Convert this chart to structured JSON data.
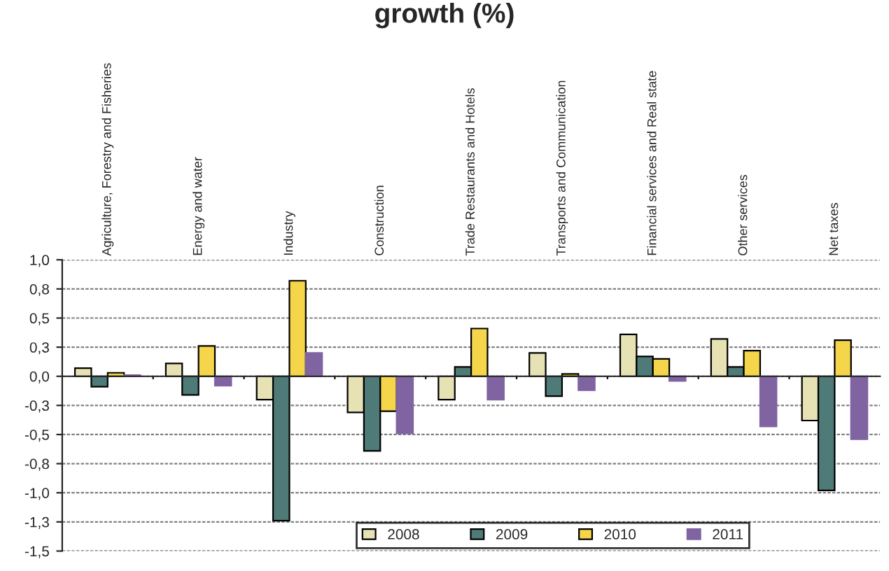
{
  "chart_data": {
    "type": "bar",
    "title": "growth (%)",
    "categories": [
      "Agriculture, Forestry and Fisheries",
      "Energy and water",
      "Industry",
      "Construction",
      "Trade Restaurants and Hotels",
      "Transports and Communication",
      "Financial services and Real state",
      "Other services",
      "Net taxes"
    ],
    "series": [
      {
        "name": "2008",
        "color": "#e6e2b4",
        "values": [
          0.07,
          0.11,
          -0.2,
          -0.31,
          -0.2,
          0.2,
          0.36,
          0.32,
          -0.38
        ]
      },
      {
        "name": "2009",
        "color": "#4e7b78",
        "values": [
          -0.09,
          -0.16,
          -1.24,
          -0.64,
          0.08,
          -0.17,
          0.17,
          0.08,
          -0.98
        ]
      },
      {
        "name": "2010",
        "color": "#f5d54a",
        "values": [
          0.03,
          0.26,
          0.82,
          -0.3,
          0.41,
          0.02,
          0.15,
          0.22,
          0.31
        ]
      },
      {
        "name": "2011",
        "color": "#8064a2",
        "values": [
          0.01,
          -0.08,
          0.2,
          -0.49,
          -0.2,
          -0.12,
          -0.04,
          -0.43,
          -0.54
        ]
      }
    ],
    "ylim": [
      -1.5,
      1.0
    ],
    "yticks": [
      {
        "value": -1.5,
        "label": "-1,5"
      },
      {
        "value": -1.25,
        "label": "-1,3"
      },
      {
        "value": -1.0,
        "label": "-1,0"
      },
      {
        "value": -0.75,
        "label": "-0,8"
      },
      {
        "value": -0.5,
        "label": "-0,5"
      },
      {
        "value": -0.25,
        "label": "-0,3"
      },
      {
        "value": 0.0,
        "label": "0,0"
      },
      {
        "value": 0.25,
        "label": "0,3"
      },
      {
        "value": 0.5,
        "label": "0,5"
      },
      {
        "value": 0.75,
        "label": "0,8"
      },
      {
        "value": 1.0,
        "label": "1,0"
      }
    ],
    "grid": "y",
    "legend": "bottom"
  }
}
